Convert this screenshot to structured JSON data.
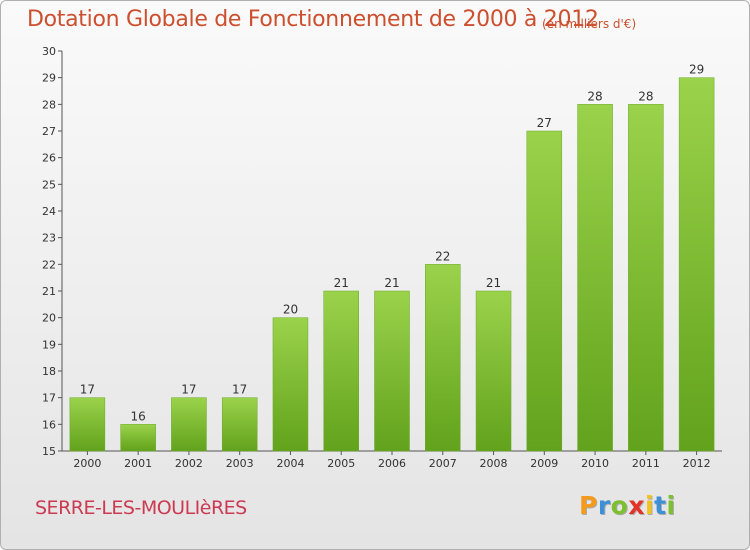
{
  "chart_data": {
    "type": "bar",
    "title": "Dotation Globale de Fonctionnement de 2000 à 2012",
    "subtitle": "(en milliers d'€)",
    "categories": [
      "2000",
      "2001",
      "2002",
      "2003",
      "2004",
      "2005",
      "2006",
      "2007",
      "2008",
      "2009",
      "2010",
      "2011",
      "2012"
    ],
    "values": [
      17,
      16,
      17,
      17,
      20,
      21,
      21,
      22,
      21,
      27,
      28,
      28,
      29
    ],
    "ylim": [
      15,
      30
    ],
    "yticks": [
      15,
      16,
      17,
      18,
      19,
      20,
      21,
      22,
      23,
      24,
      25,
      26,
      27,
      28,
      29,
      30
    ],
    "grid": false,
    "bar_color": "#7dbb36"
  },
  "footer": {
    "commune": "SERRE-LES-MOULIèRES",
    "logo_letters": [
      {
        "ch": "P",
        "color": "#f39a1f"
      },
      {
        "ch": "r",
        "color": "#3d8fd6"
      },
      {
        "ch": "o",
        "color": "#7cbf2f"
      },
      {
        "ch": "x",
        "color": "#e2332a"
      },
      {
        "ch": "i",
        "color": "#f3c21f"
      },
      {
        "ch": "t",
        "color": "#3d8fd6"
      },
      {
        "ch": "i",
        "color": "#7cbf2f"
      }
    ]
  }
}
